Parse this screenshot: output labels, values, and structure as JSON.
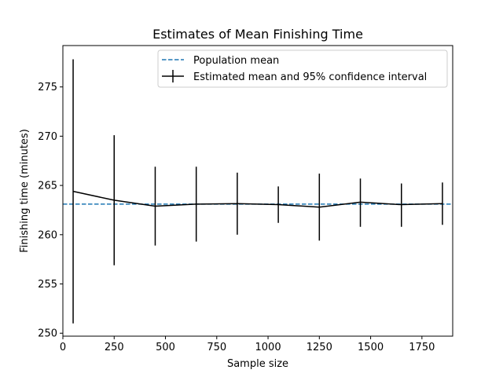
{
  "chart_data": {
    "type": "line",
    "title": "Estimates of Mean Finishing Time",
    "xlabel": "Sample size",
    "ylabel": "Finishing time (minutes)",
    "xlim": [
      0,
      1900
    ],
    "ylim": [
      249.7,
      279.2
    ],
    "x_ticks": [
      0,
      250,
      500,
      750,
      1000,
      1250,
      1500,
      1750
    ],
    "y_ticks": [
      250,
      255,
      260,
      265,
      270,
      275
    ],
    "grid": false,
    "legend_position": "top-right",
    "population_mean": {
      "name": "Population mean",
      "value": 263.1,
      "color": "#1f77b4",
      "style": "dashed"
    },
    "series": [
      {
        "name": "Estimated mean and 95% confidence interval",
        "color": "#000000",
        "x": [
          50,
          250,
          450,
          650,
          850,
          1050,
          1250,
          1450,
          1650,
          1850
        ],
        "y": [
          264.4,
          263.5,
          262.9,
          263.1,
          263.15,
          263.05,
          262.8,
          263.3,
          263.05,
          263.15
        ],
        "lower": [
          251.0,
          256.9,
          258.9,
          259.3,
          260.0,
          261.2,
          259.4,
          260.8,
          260.8,
          261.0
        ],
        "upper": [
          277.8,
          270.1,
          266.9,
          266.9,
          266.3,
          264.9,
          266.2,
          265.7,
          265.2,
          265.3
        ]
      }
    ]
  }
}
